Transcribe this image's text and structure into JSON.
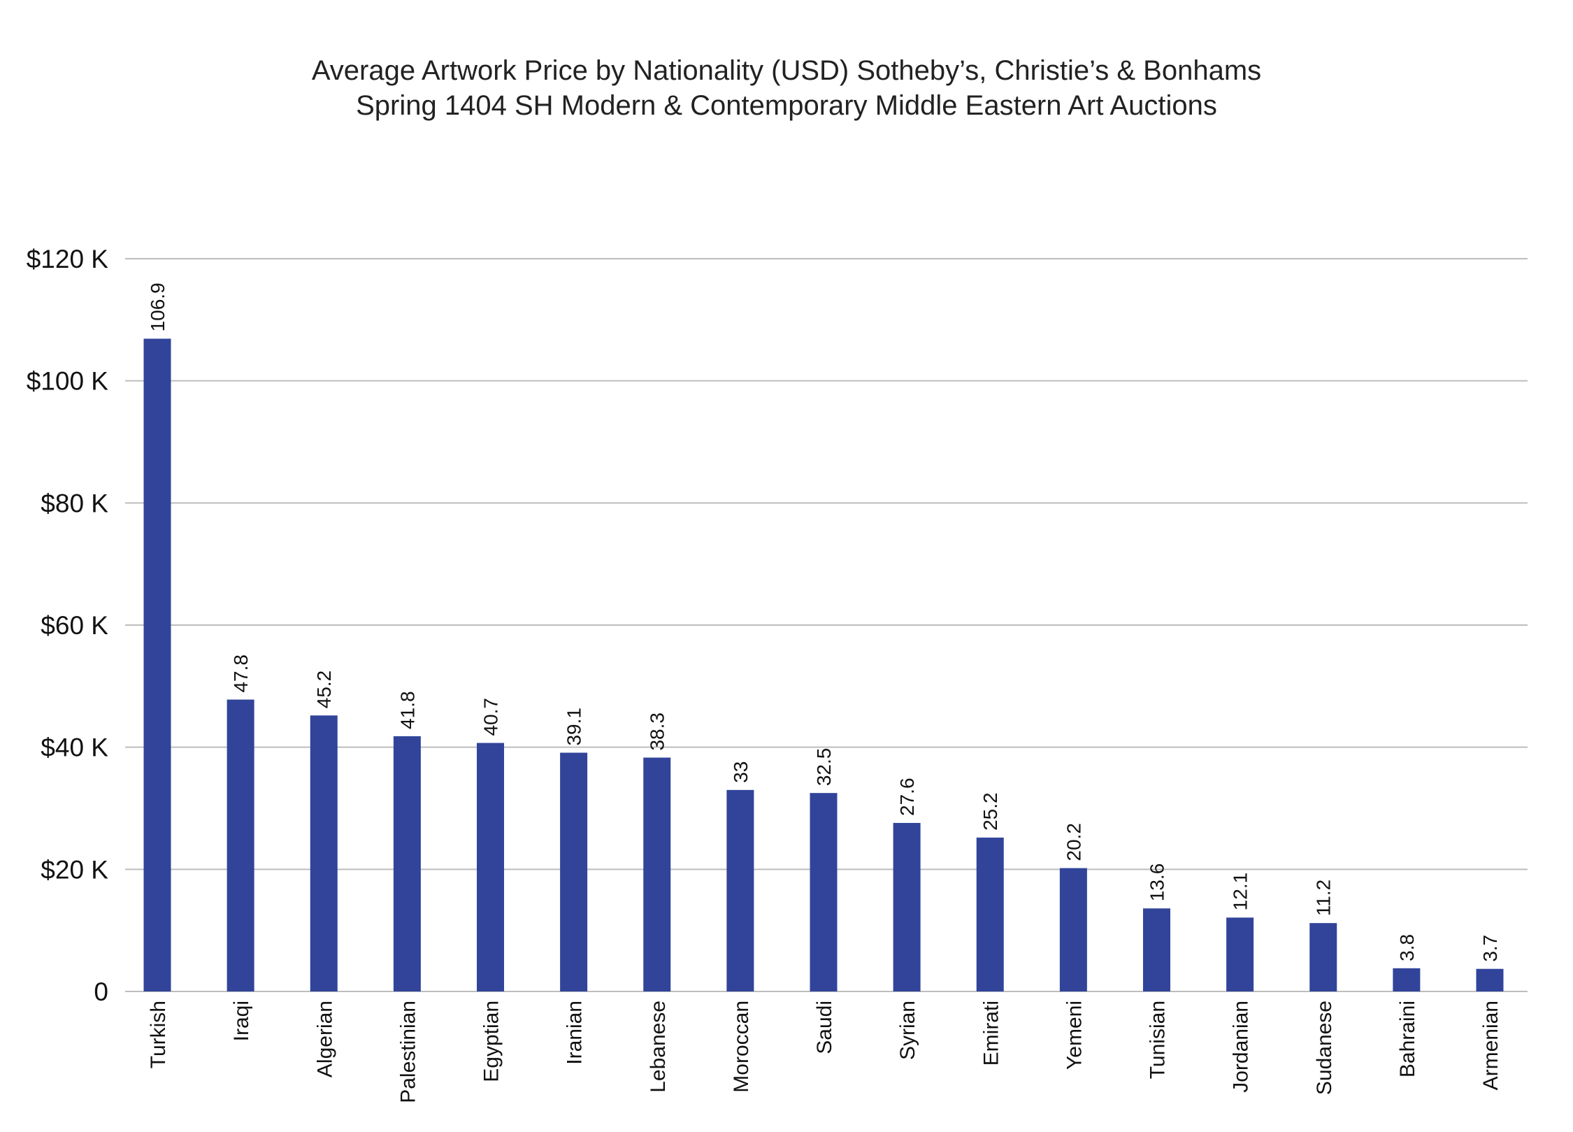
{
  "chart_data": {
    "type": "bar",
    "title": [
      "Average Artwork Price by Nationality (USD) Sotheby’s, Christie’s & Bonhams",
      "Spring 1404 SH Modern & Contemporary Middle Eastern Art Auctions"
    ],
    "xlabel": "",
    "ylabel": "",
    "ylim": [
      0,
      120
    ],
    "yticks": [
      {
        "value": 0,
        "label": "0"
      },
      {
        "value": 20,
        "label": "$20 K"
      },
      {
        "value": 40,
        "label": "$40 K"
      },
      {
        "value": 60,
        "label": "$60 K"
      },
      {
        "value": 80,
        "label": "$80 K"
      },
      {
        "value": 100,
        "label": "$100 K"
      },
      {
        "value": 120,
        "label": "$120 K"
      }
    ],
    "grid": true,
    "bar_color": "#31449a",
    "grid_color": "#bdbdbd",
    "categories": [
      "Turkish",
      "Iraqi",
      "Algerian",
      "Palestinian",
      "Egyptian",
      "Iranian",
      "Lebanese",
      "Moroccan",
      "Saudi",
      "Syrian",
      "Emirati",
      "Yemeni",
      "Tunisian",
      "Jordanian",
      "Sudanese",
      "Bahraini",
      "Armenian"
    ],
    "values": [
      106.9,
      47.8,
      45.2,
      41.8,
      40.7,
      39.1,
      38.3,
      33,
      32.5,
      27.6,
      25.2,
      20.2,
      13.6,
      12.1,
      11.2,
      3.8,
      3.7
    ],
    "value_labels": [
      "106.9",
      "47.8",
      "45.2",
      "41.8",
      "40.7",
      "39.1",
      "38.3",
      "33",
      "32.5",
      "27.6",
      "25.2",
      "20.2",
      "13.6",
      "12.1",
      "11.2",
      "3.8",
      "3.7"
    ]
  }
}
